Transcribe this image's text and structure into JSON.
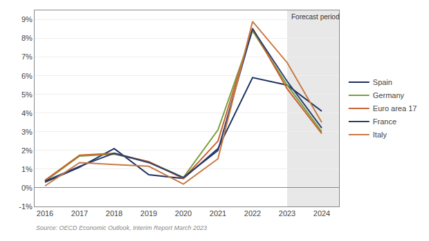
{
  "chart_data": {
    "type": "line",
    "x": [
      2016,
      2017,
      2018,
      2019,
      2020,
      2021,
      2022,
      2023,
      2024
    ],
    "series": [
      {
        "name": "Spain",
        "color": "#1b2f5e",
        "values": [
          0.3,
          1.1,
          2.1,
          0.7,
          0.5,
          2.1,
          5.9,
          5.5,
          4.1
        ]
      },
      {
        "name": "Germany",
        "color": "#7a9e3b",
        "values": [
          0.35,
          1.7,
          1.8,
          1.4,
          0.55,
          3.1,
          8.4,
          5.5,
          3.0
        ]
      },
      {
        "name": "Euro area 17",
        "color": "#c8612c",
        "values": [
          0.4,
          1.75,
          1.85,
          1.4,
          0.5,
          2.5,
          8.55,
          5.3,
          2.9
        ]
      },
      {
        "name": "France",
        "color": "#2a3d6e",
        "values": [
          0.35,
          1.15,
          1.85,
          1.35,
          0.55,
          2.0,
          8.5,
          5.7,
          3.2
        ]
      },
      {
        "name": "Italy",
        "color": "#c87941",
        "values": [
          0.1,
          1.35,
          1.25,
          1.15,
          0.2,
          1.55,
          8.9,
          6.7,
          3.5
        ]
      }
    ],
    "xlim": [
      2015.7,
      2024.5
    ],
    "xticks": [
      2016,
      2017,
      2018,
      2019,
      2020,
      2021,
      2022,
      2023,
      2024
    ],
    "ylim": [
      -1,
      9.5
    ],
    "yticks": [
      {
        "value": -1,
        "label": "-1%"
      },
      {
        "value": 0,
        "label": "0%"
      },
      {
        "value": 1,
        "label": "1%"
      },
      {
        "value": 2,
        "label": "2%"
      },
      {
        "value": 3,
        "label": "3%"
      },
      {
        "value": 4,
        "label": "4%"
      },
      {
        "value": 5,
        "label": "5%"
      },
      {
        "value": 6,
        "label": "6%"
      },
      {
        "value": 7,
        "label": "7%"
      },
      {
        "value": 8,
        "label": "8%"
      },
      {
        "value": 9,
        "label": "9%"
      }
    ],
    "grid": true,
    "legend": "right",
    "forecast": {
      "start": 2023,
      "label": "Forecast period",
      "color": "#e8e8e8"
    },
    "source": "Source: OECD Economic Outlook, Interim Report March 2023"
  }
}
